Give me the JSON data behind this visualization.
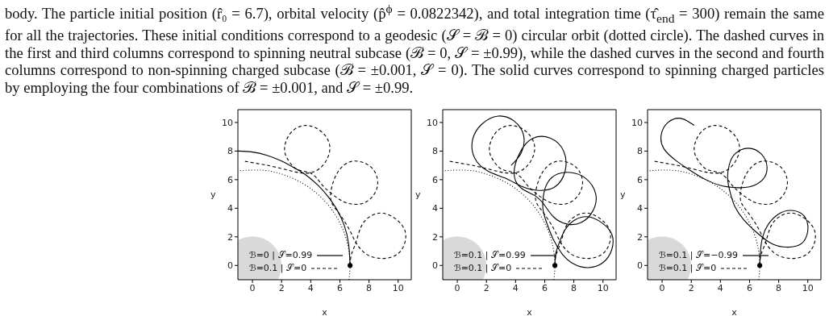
{
  "chart_data": [
    {
      "type": "line",
      "xlabel": "x",
      "ylabel": "y",
      "xlim": [
        -1,
        10.9
      ],
      "ylim": [
        -1,
        10.9
      ],
      "xticks": [
        0,
        2,
        4,
        6,
        8,
        10
      ],
      "yticks": [
        0,
        2,
        4,
        6,
        8,
        10
      ],
      "legend": "bottom left",
      "annotations": [
        "body. The particle initial position (r̂₀ = 6.7), orbital velocity (p̂$^{ϕ}$ = 0.0822342), and total integration time (τ̂$_{end}$ = 300) remain the same for all the trajectories. These initial conditions correspond to a geodesic (𝒮 = ℬ = 0) circular orbit (dotted circle). The dashed curves in the first and third columns correspond to spinning neutral subcase (ℬ = 0, 𝒮 = ±0.99), while the dashed curves in the second and fourth columns correspond to non-spinning charged subcase (ℬ = ±0.001, 𝒮 = 0). The solid curves correspond to spinning charged particles by employing the four combinations of ℬ = ±0.001, and 𝒮 = ±0.99."
      ],
      "series": [
        {
          "name": "ℬ=0 | 𝒮=0.99",
          "color": "#000000",
          "line_style": "solid",
          "x": [
            6.7,
            6.6,
            6.3,
            5.8,
            5.2,
            4.5,
            3.7,
            3.0,
            2.0,
            1.0,
            0.0,
            -1.0
          ],
          "values": [
            0,
            1.5,
            2.8,
            3.9,
            4.8,
            5.6,
            6.3,
            6.75,
            7.3,
            7.7,
            7.93,
            8.0
          ]
        },
        {
          "name": "ℬ=0.1 | 𝒮=0",
          "color": "#000000",
          "line_style": "dashed",
          "x": [
            6.7,
            6.8,
            7.1,
            7.5,
            8.2,
            9.0,
            9.9,
            10.5,
            10.3,
            9.6,
            8.7,
            7.8,
            7.1,
            6.6,
            5.9,
            5.4,
            5.45,
            5.9,
            6.7,
            7.6,
            8.3,
            8.6,
            8.3,
            7.6,
            6.8,
            6.0,
            5.0,
            4.5,
            3.9,
            3.1,
            2.5,
            2.2,
            2.5,
            3.2,
            4.0,
            4.8,
            5.3,
            5.1,
            4.5,
            3.7,
            2.7,
            1.5,
            0.5,
            -0.6
          ],
          "values": [
            0,
            0.8,
            1.6,
            2.8,
            3.5,
            3.65,
            3.2,
            2.3,
            1.2,
            0.6,
            0.5,
            0.8,
            1.6,
            2.6,
            3.7,
            4.5,
            5.5,
            6.6,
            7.25,
            7.2,
            6.7,
            5.8,
            4.9,
            4.35,
            4.3,
            4.6,
            5.4,
            6.0,
            6.5,
            6.7,
            7.3,
            8.1,
            9.1,
            9.7,
            9.75,
            9.3,
            8.4,
            7.4,
            6.7,
            6.45,
            6.6,
            6.9,
            7.1,
            7.3
          ]
        },
        {
          "color": "#000000",
          "line_style": "dotted",
          "x": [
            6.62,
            6.7,
            6.55,
            6.12,
            5.42,
            4.48,
            3.35,
            2.07,
            0.7,
            -1
          ],
          "values": [
            -1,
            0,
            1.4,
            2.72,
            3.94,
            4.98,
            5.8,
            6.37,
            6.66,
            6.62
          ]
        },
        {
          "type": "scatter",
          "marker": "circle",
          "color": "#000000",
          "x": [
            6.7
          ],
          "values": [
            0
          ]
        }
      ]
    },
    {
      "type": "line",
      "xlabel": "x",
      "ylabel": "y",
      "xlim": [
        -1,
        10.9
      ],
      "ylim": [
        -1,
        10.9
      ],
      "xticks": [
        0,
        2,
        4,
        6,
        8,
        10
      ],
      "yticks": [
        0,
        2,
        4,
        6,
        8,
        10
      ],
      "legend": "bottom left",
      "series": [
        {
          "name": "ℬ=0.1 | 𝒮=0.99",
          "color": "#000000",
          "line_style": "solid",
          "x": [
            6.7,
            6.75,
            7.0,
            7.4,
            8.1,
            9.0,
            9.9,
            10.6,
            10.6,
            10.0,
            9.0,
            8.0,
            7.2,
            6.6,
            6.2,
            5.9,
            5.9,
            6.2,
            6.9,
            7.8,
            8.8,
            9.5,
            9.3,
            8.5,
            7.5,
            6.6,
            6.0,
            5.3,
            4.4,
            3.9,
            4.3,
            5.2,
            6.4,
            7.3,
            7.4,
            6.7,
            5.6,
            4.5,
            3.3,
            2.1,
            1.2,
            1.05,
            1.7,
            2.8,
            3.9,
            4.55,
            4.4,
            3.7
          ],
          "values": [
            0,
            0.8,
            1.6,
            2.5,
            3.2,
            3.4,
            3.0,
            2.2,
            1.1,
            0.2,
            -0.15,
            0.1,
            0.8,
            1.8,
            2.8,
            3.8,
            4.8,
            5.8,
            6.4,
            6.5,
            6.1,
            5.0,
            3.8,
            3.0,
            2.9,
            3.4,
            4.2,
            4.9,
            5.4,
            6.4,
            7.9,
            8.9,
            8.9,
            8.0,
            6.6,
            5.5,
            5.25,
            5.5,
            6.1,
            6.6,
            7.5,
            8.8,
            9.9,
            10.45,
            10.1,
            9.1,
            7.9,
            7.0
          ]
        },
        {
          "name": "ℬ=0.1 | 𝒮=0",
          "color": "#000000",
          "line_style": "dashed",
          "x": [
            6.7,
            6.8,
            7.1,
            7.5,
            8.2,
            9.0,
            9.9,
            10.5,
            10.3,
            9.6,
            8.7,
            7.8,
            7.1,
            6.6,
            5.9,
            5.4,
            5.45,
            5.9,
            6.7,
            7.6,
            8.3,
            8.6,
            8.3,
            7.6,
            6.8,
            6.0,
            5.0,
            4.5,
            3.9,
            3.1,
            2.5,
            2.2,
            2.5,
            3.2,
            4.0,
            4.8,
            5.3,
            5.1,
            4.5,
            3.7,
            2.7,
            1.5,
            0.5,
            -0.6
          ],
          "values": [
            0,
            0.8,
            1.6,
            2.8,
            3.5,
            3.65,
            3.2,
            2.3,
            1.2,
            0.6,
            0.5,
            0.8,
            1.6,
            2.6,
            3.7,
            4.5,
            5.5,
            6.6,
            7.25,
            7.2,
            6.7,
            5.8,
            4.9,
            4.35,
            4.3,
            4.6,
            5.4,
            6.0,
            6.5,
            6.7,
            7.3,
            8.1,
            9.1,
            9.7,
            9.75,
            9.3,
            8.4,
            7.4,
            6.7,
            6.45,
            6.6,
            6.9,
            7.1,
            7.3
          ]
        },
        {
          "color": "#000000",
          "line_style": "dotted",
          "x": [
            6.62,
            6.7,
            6.55,
            6.12,
            5.42,
            4.48,
            3.35,
            2.07,
            0.7,
            -1
          ],
          "values": [
            -1,
            0,
            1.4,
            2.72,
            3.94,
            4.98,
            5.8,
            6.37,
            6.66,
            6.62
          ]
        },
        {
          "type": "scatter",
          "marker": "circle",
          "color": "#000000",
          "x": [
            6.7
          ],
          "values": [
            0
          ]
        }
      ]
    },
    {
      "type": "line",
      "xlabel": "x",
      "ylabel": "y",
      "xlim": [
        -1,
        10.9
      ],
      "ylim": [
        -1,
        10.9
      ],
      "xticks": [
        0,
        2,
        4,
        6,
        8,
        10
      ],
      "yticks": [
        0,
        2,
        4,
        6,
        8,
        10
      ],
      "legend": "bottom left",
      "series": [
        {
          "name": "ℬ=0.1 | 𝒮=−0.99",
          "color": "#000000",
          "line_style": "solid",
          "x": [
            6.7,
            6.75,
            6.9,
            7.3,
            8.0,
            8.8,
            9.6,
            10.0,
            9.8,
            9.2,
            8.3,
            7.4,
            6.5,
            5.6,
            5.0,
            4.7,
            4.5,
            4.6,
            5.0,
            5.9,
            6.8,
            7.2,
            6.9,
            6.0,
            5.0,
            4.0,
            3.0,
            2.0,
            1.0,
            0.1,
            -0.05,
            0.4,
            1.2,
            1.9,
            2.2
          ],
          "values": [
            0,
            1.0,
            2.0,
            2.9,
            3.6,
            3.85,
            3.6,
            2.8,
            1.8,
            1.35,
            1.3,
            1.6,
            2.3,
            3.2,
            4.1,
            5.0,
            6.0,
            7.0,
            7.8,
            8.2,
            7.8,
            6.9,
            6.0,
            5.5,
            5.45,
            5.6,
            6.0,
            6.6,
            7.3,
            8.2,
            9.2,
            10.0,
            10.3,
            10.0,
            9.8
          ]
        },
        {
          "name": "ℬ=0.1 | 𝒮=0",
          "color": "#000000",
          "line_style": "dashed",
          "x": [
            6.7,
            6.8,
            7.1,
            7.5,
            8.2,
            9.0,
            9.9,
            10.5,
            10.3,
            9.6,
            8.7,
            7.8,
            7.1,
            6.6,
            5.9,
            5.4,
            5.45,
            5.9,
            6.7,
            7.6,
            8.3,
            8.6,
            8.3,
            7.6,
            6.8,
            6.0,
            5.0,
            4.5,
            3.9,
            3.1,
            2.5,
            2.2,
            2.5,
            3.2,
            4.0,
            4.8,
            5.3,
            5.1,
            4.5,
            3.7,
            2.7,
            1.5,
            0.5,
            -0.6
          ],
          "values": [
            0,
            0.8,
            1.6,
            2.8,
            3.5,
            3.65,
            3.2,
            2.3,
            1.2,
            0.6,
            0.5,
            0.8,
            1.6,
            2.6,
            3.7,
            4.5,
            5.5,
            6.6,
            7.25,
            7.2,
            6.7,
            5.8,
            4.9,
            4.35,
            4.3,
            4.6,
            5.4,
            6.0,
            6.5,
            6.7,
            7.3,
            8.1,
            9.1,
            9.7,
            9.75,
            9.3,
            8.4,
            7.4,
            6.7,
            6.45,
            6.6,
            6.9,
            7.1,
            7.3
          ]
        },
        {
          "color": "#000000",
          "line_style": "dotted",
          "x": [
            6.62,
            6.7,
            6.55,
            6.12,
            5.42,
            4.48,
            3.35,
            2.07,
            0.7,
            -1
          ],
          "values": [
            -1,
            0,
            1.4,
            2.72,
            3.94,
            4.98,
            5.8,
            6.37,
            6.66,
            6.62
          ]
        },
        {
          "type": "scatter",
          "marker": "circle",
          "color": "#000000",
          "x": [
            6.7
          ],
          "values": [
            0
          ]
        }
      ]
    }
  ]
}
